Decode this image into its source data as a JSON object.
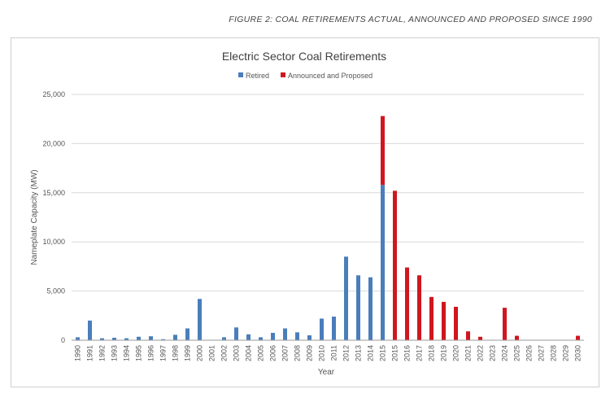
{
  "figure_caption": "FIGURE 2: COAL RETIREMENTS ACTUAL, ANNOUNCED AND PROPOSED SINCE 1990",
  "colors": {
    "retired": "#4a7ebb",
    "announced": "#d0161f",
    "grid": "#d9d9d9",
    "axis": "#999999"
  },
  "chart_data": {
    "type": "bar",
    "title": "Electric Sector Coal Retirements",
    "xlabel": "Year",
    "ylabel": "Nameplate Capacity (MW)",
    "ylim": [
      0,
      25000
    ],
    "yticks": [
      "0",
      "5,000",
      "10,000",
      "15,000",
      "20,000",
      "25,000"
    ],
    "ytick_values": [
      0,
      5000,
      10000,
      15000,
      20000,
      25000
    ],
    "grid": true,
    "legend_position": "top",
    "categories": [
      "1990",
      "1991",
      "1992",
      "1993",
      "1994",
      "1995",
      "1996",
      "1997",
      "1998",
      "1999",
      "2000",
      "2001",
      "2002",
      "2003",
      "2004",
      "2005",
      "2006",
      "2007",
      "2008",
      "2009",
      "2010",
      "2011",
      "2012",
      "2013",
      "2014",
      "2015",
      "2015",
      "2016",
      "2017",
      "2018",
      "2019",
      "2020",
      "2021",
      "2022",
      "2023",
      "2024",
      "2025",
      "2026",
      "2027",
      "2028",
      "2029",
      "2030"
    ],
    "series": [
      {
        "name": "Retired",
        "values": [
          300,
          2000,
          200,
          250,
          200,
          350,
          400,
          100,
          550,
          1200,
          4200,
          0,
          300,
          1300,
          600,
          300,
          750,
          1200,
          800,
          500,
          2200,
          2400,
          8500,
          6600,
          6400,
          15800,
          0,
          0,
          0,
          0,
          0,
          0,
          0,
          0,
          0,
          0,
          0,
          0,
          0,
          0,
          0,
          0
        ]
      },
      {
        "name": "Announced and Proposed",
        "values": [
          0,
          0,
          0,
          0,
          0,
          0,
          0,
          0,
          0,
          0,
          0,
          0,
          0,
          0,
          0,
          0,
          0,
          0,
          0,
          0,
          0,
          0,
          0,
          0,
          0,
          7000,
          15200,
          7400,
          6600,
          4400,
          3900,
          3400,
          900,
          350,
          0,
          3300,
          450,
          0,
          0,
          0,
          0,
          450
        ]
      }
    ]
  }
}
